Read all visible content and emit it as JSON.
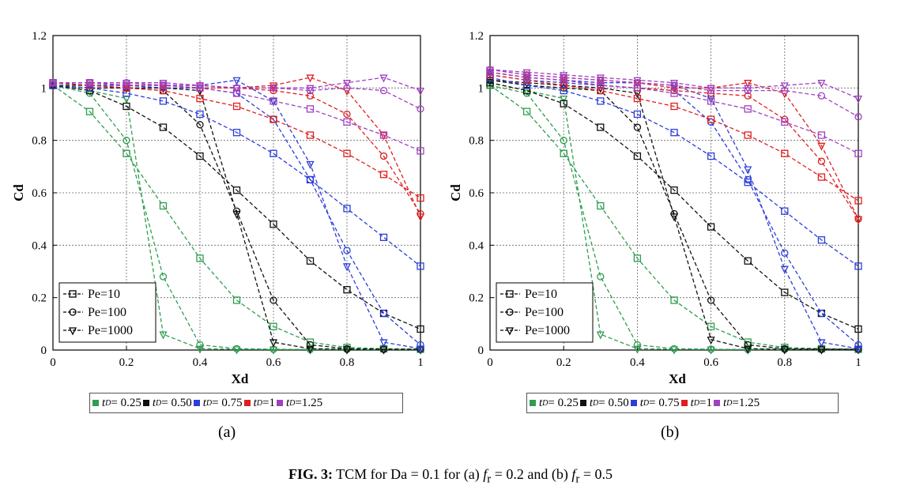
{
  "caption": {
    "label": "FIG. 3:",
    "text": "TCM for Da = 0.1 for (a)",
    "fr_symbol": "f",
    "fr_sub": "r",
    "fr_a": "= 0.2",
    "and_text": "and (b)",
    "fr_b": "= 0.5"
  },
  "panel_labels": [
    "(a)",
    "(b)"
  ],
  "td_legend": [
    {
      "label": "t",
      "sub": "D",
      "value": "= 0.25",
      "color": "#2e9e4e"
    },
    {
      "label": "t",
      "sub": "D",
      "value": "= 0.50",
      "color": "#111111"
    },
    {
      "label": "t",
      "sub": "D",
      "value": "= 0.75",
      "color": "#2c3ed8"
    },
    {
      "label": "t",
      "sub": "D",
      "value": "=1",
      "color": "#e01e1e"
    },
    {
      "label": "t",
      "sub": "D",
      "value": "=1.25",
      "color": "#a040c0"
    }
  ],
  "chart_data": [
    {
      "type": "line",
      "panel": "(a)",
      "xlabel": "Xd",
      "ylabel": "Cd",
      "xlim": [
        0,
        1
      ],
      "ylim": [
        0,
        1.2
      ],
      "xticks": [
        "0",
        "0.2",
        "0.4",
        "0.6",
        "0.8",
        "1"
      ],
      "yticks": [
        "0",
        "0.2",
        "0.4",
        "0.6",
        "0.8",
        "1",
        "1.2"
      ],
      "grid": true,
      "marker_legend": [
        "Pe=10",
        "Pe=100",
        "Pe=1000"
      ],
      "marker_legend_position": "bottom-left",
      "series": [
        {
          "td": 0.25,
          "pe": 10,
          "x": [
            0,
            0.1,
            0.2,
            0.3,
            0.4,
            0.5,
            0.6,
            0.7,
            0.8,
            0.9,
            1
          ],
          "y": [
            1.01,
            0.91,
            0.75,
            0.55,
            0.35,
            0.19,
            0.09,
            0.03,
            0.01,
            0.005,
            0.003
          ]
        },
        {
          "td": 0.25,
          "pe": 100,
          "x": [
            0,
            0.1,
            0.2,
            0.3,
            0.4,
            0.5,
            0.6,
            0.7,
            0.8,
            0.9,
            1
          ],
          "y": [
            1.01,
            0.98,
            0.8,
            0.28,
            0.02,
            0.005,
            0.003,
            0.002,
            0.002,
            0.002,
            0.002
          ]
        },
        {
          "td": 0.25,
          "pe": 1000,
          "x": [
            0,
            0.1,
            0.2,
            0.3,
            0.4,
            0.5,
            0.6,
            0.7,
            0.8,
            0.9,
            1
          ],
          "y": [
            1.01,
            0.99,
            0.96,
            0.06,
            0.005,
            0.003,
            0.002,
            0.002,
            0.002,
            0.002,
            0.002
          ]
        },
        {
          "td": 0.5,
          "pe": 10,
          "x": [
            0,
            0.1,
            0.2,
            0.3,
            0.4,
            0.5,
            0.6,
            0.7,
            0.8,
            0.9,
            1
          ],
          "y": [
            1.01,
            0.99,
            0.93,
            0.85,
            0.74,
            0.61,
            0.48,
            0.34,
            0.23,
            0.14,
            0.08
          ]
        },
        {
          "td": 0.5,
          "pe": 100,
          "x": [
            0,
            0.1,
            0.2,
            0.3,
            0.4,
            0.5,
            0.6,
            0.7,
            0.8,
            0.9,
            1
          ],
          "y": [
            1.01,
            1.0,
            1.0,
            0.99,
            0.86,
            0.53,
            0.19,
            0.02,
            0.005,
            0.003,
            0.003
          ]
        },
        {
          "td": 0.5,
          "pe": 1000,
          "x": [
            0,
            0.1,
            0.2,
            0.3,
            0.4,
            0.5,
            0.6,
            0.7,
            0.8,
            0.9,
            1
          ],
          "y": [
            1.01,
            1.01,
            1.0,
            1.0,
            0.99,
            0.52,
            0.03,
            0.005,
            0.003,
            0.003,
            0.003
          ]
        },
        {
          "td": 0.75,
          "pe": 10,
          "x": [
            0,
            0.1,
            0.2,
            0.3,
            0.4,
            0.5,
            0.6,
            0.7,
            0.8,
            0.9,
            1
          ],
          "y": [
            1.01,
            1.0,
            0.98,
            0.95,
            0.9,
            0.83,
            0.75,
            0.65,
            0.54,
            0.43,
            0.32
          ]
        },
        {
          "td": 0.75,
          "pe": 100,
          "x": [
            0,
            0.1,
            0.2,
            0.3,
            0.4,
            0.5,
            0.6,
            0.7,
            0.8,
            0.9,
            1
          ],
          "y": [
            1.02,
            1.01,
            1.01,
            1.0,
            1.0,
            0.98,
            0.88,
            0.65,
            0.38,
            0.14,
            0.02
          ]
        },
        {
          "td": 0.75,
          "pe": 1000,
          "x": [
            0,
            0.1,
            0.2,
            0.3,
            0.4,
            0.5,
            0.6,
            0.7,
            0.8,
            0.9,
            1
          ],
          "y": [
            1.02,
            1.01,
            1.01,
            1.01,
            1.01,
            1.03,
            0.95,
            0.71,
            0.32,
            0.03,
            0.005
          ]
        },
        {
          "td": 1,
          "pe": 10,
          "x": [
            0,
            0.1,
            0.2,
            0.3,
            0.4,
            0.5,
            0.6,
            0.7,
            0.8,
            0.9,
            1
          ],
          "y": [
            1.02,
            1.01,
            1.0,
            0.99,
            0.96,
            0.93,
            0.88,
            0.82,
            0.75,
            0.67,
            0.58
          ]
        },
        {
          "td": 1,
          "pe": 100,
          "x": [
            0,
            0.1,
            0.2,
            0.3,
            0.4,
            0.5,
            0.6,
            0.7,
            0.8,
            0.9,
            1
          ],
          "y": [
            1.02,
            1.02,
            1.01,
            1.01,
            1.0,
            1.0,
            0.99,
            0.97,
            0.9,
            0.74,
            0.52
          ]
        },
        {
          "td": 1,
          "pe": 1000,
          "x": [
            0,
            0.1,
            0.2,
            0.3,
            0.4,
            0.5,
            0.6,
            0.7,
            0.8,
            0.9,
            1
          ],
          "y": [
            1.02,
            1.02,
            1.01,
            1.01,
            1.01,
            1.0,
            1.01,
            1.04,
            0.99,
            0.82,
            0.51
          ]
        },
        {
          "td": 1.25,
          "pe": 10,
          "x": [
            0,
            0.1,
            0.2,
            0.3,
            0.4,
            0.5,
            0.6,
            0.7,
            0.8,
            0.9,
            1
          ],
          "y": [
            1.02,
            1.02,
            1.01,
            1.01,
            1.0,
            0.98,
            0.95,
            0.92,
            0.87,
            0.82,
            0.76
          ]
        },
        {
          "td": 1.25,
          "pe": 100,
          "x": [
            0,
            0.1,
            0.2,
            0.3,
            0.4,
            0.5,
            0.6,
            0.7,
            0.8,
            0.9,
            1
          ],
          "y": [
            1.02,
            1.02,
            1.02,
            1.01,
            1.01,
            1.0,
            1.0,
            0.99,
            1.0,
            0.99,
            0.92
          ]
        },
        {
          "td": 1.25,
          "pe": 1000,
          "x": [
            0,
            0.1,
            0.2,
            0.3,
            0.4,
            0.5,
            0.6,
            0.7,
            0.8,
            0.9,
            1
          ],
          "y": [
            1.02,
            1.02,
            1.02,
            1.02,
            1.01,
            1.0,
            1.0,
            1.0,
            1.02,
            1.04,
            0.99
          ]
        }
      ]
    },
    {
      "type": "line",
      "panel": "(b)",
      "xlabel": "Xd",
      "ylabel": "Cd",
      "xlim": [
        0,
        1
      ],
      "ylim": [
        0,
        1.2
      ],
      "xticks": [
        "0",
        "0.2",
        "0.4",
        "0.6",
        "0.8",
        "1"
      ],
      "yticks": [
        "0",
        "0.2",
        "0.4",
        "0.6",
        "0.8",
        "1",
        "1.2"
      ],
      "grid": true,
      "marker_legend": [
        "Pe=10",
        "Pe=100",
        "Pe=1000"
      ],
      "marker_legend_position": "bottom-left",
      "series": [
        {
          "td": 0.25,
          "pe": 10,
          "x": [
            0,
            0.1,
            0.2,
            0.3,
            0.4,
            0.5,
            0.6,
            0.7,
            0.8,
            0.9,
            1
          ],
          "y": [
            1.01,
            0.91,
            0.75,
            0.55,
            0.35,
            0.19,
            0.09,
            0.03,
            0.01,
            0.005,
            0.003
          ]
        },
        {
          "td": 0.25,
          "pe": 100,
          "x": [
            0,
            0.1,
            0.2,
            0.3,
            0.4,
            0.5,
            0.6,
            0.7,
            0.8,
            0.9,
            1
          ],
          "y": [
            1.01,
            0.98,
            0.8,
            0.28,
            0.02,
            0.005,
            0.003,
            0.002,
            0.002,
            0.002,
            0.002
          ]
        },
        {
          "td": 0.25,
          "pe": 1000,
          "x": [
            0,
            0.1,
            0.2,
            0.3,
            0.4,
            0.5,
            0.6,
            0.7,
            0.8,
            0.9,
            1
          ],
          "y": [
            1.02,
            0.99,
            0.96,
            0.06,
            0.005,
            0.003,
            0.002,
            0.002,
            0.002,
            0.002,
            0.002
          ]
        },
        {
          "td": 0.5,
          "pe": 10,
          "x": [
            0,
            0.1,
            0.2,
            0.3,
            0.4,
            0.5,
            0.6,
            0.7,
            0.8,
            0.9,
            1
          ],
          "y": [
            1.02,
            0.99,
            0.94,
            0.85,
            0.74,
            0.61,
            0.47,
            0.34,
            0.22,
            0.14,
            0.08
          ]
        },
        {
          "td": 0.5,
          "pe": 100,
          "x": [
            0,
            0.1,
            0.2,
            0.3,
            0.4,
            0.5,
            0.6,
            0.7,
            0.8,
            0.9,
            1
          ],
          "y": [
            1.03,
            1.01,
            1.0,
            0.99,
            0.85,
            0.52,
            0.19,
            0.02,
            0.005,
            0.003,
            0.003
          ]
        },
        {
          "td": 0.5,
          "pe": 1000,
          "x": [
            0,
            0.1,
            0.2,
            0.3,
            0.4,
            0.5,
            0.6,
            0.7,
            0.8,
            0.9,
            1
          ],
          "y": [
            1.03,
            1.02,
            1.01,
            1.0,
            0.98,
            0.51,
            0.04,
            0.005,
            0.003,
            0.003,
            0.003
          ]
        },
        {
          "td": 0.75,
          "pe": 10,
          "x": [
            0,
            0.1,
            0.2,
            0.3,
            0.4,
            0.5,
            0.6,
            0.7,
            0.8,
            0.9,
            1
          ],
          "y": [
            1.04,
            1.01,
            0.99,
            0.95,
            0.9,
            0.83,
            0.74,
            0.64,
            0.53,
            0.42,
            0.32
          ]
        },
        {
          "td": 0.75,
          "pe": 100,
          "x": [
            0,
            0.1,
            0.2,
            0.3,
            0.4,
            0.5,
            0.6,
            0.7,
            0.8,
            0.9,
            1
          ],
          "y": [
            1.05,
            1.03,
            1.02,
            1.01,
            1.0,
            0.99,
            0.87,
            0.65,
            0.37,
            0.14,
            0.02
          ]
        },
        {
          "td": 0.75,
          "pe": 1000,
          "x": [
            0,
            0.1,
            0.2,
            0.3,
            0.4,
            0.5,
            0.6,
            0.7,
            0.8,
            0.9,
            1
          ],
          "y": [
            1.06,
            1.04,
            1.03,
            1.02,
            1.02,
            1.01,
            0.96,
            0.69,
            0.31,
            0.03,
            0.005
          ]
        },
        {
          "td": 1,
          "pe": 10,
          "x": [
            0,
            0.1,
            0.2,
            0.3,
            0.4,
            0.5,
            0.6,
            0.7,
            0.8,
            0.9,
            1
          ],
          "y": [
            1.05,
            1.03,
            1.01,
            0.99,
            0.96,
            0.93,
            0.88,
            0.82,
            0.75,
            0.66,
            0.57
          ]
        },
        {
          "td": 1,
          "pe": 100,
          "x": [
            0,
            0.1,
            0.2,
            0.3,
            0.4,
            0.5,
            0.6,
            0.7,
            0.8,
            0.9,
            1
          ],
          "y": [
            1.06,
            1.04,
            1.03,
            1.01,
            1.0,
            0.99,
            0.98,
            0.97,
            0.88,
            0.72,
            0.5
          ]
        },
        {
          "td": 1,
          "pe": 1000,
          "x": [
            0,
            0.1,
            0.2,
            0.3,
            0.4,
            0.5,
            0.6,
            0.7,
            0.8,
            0.9,
            1
          ],
          "y": [
            1.07,
            1.05,
            1.04,
            1.03,
            1.02,
            1.0,
            1.0,
            1.02,
            0.98,
            0.78,
            0.5
          ]
        },
        {
          "td": 1.25,
          "pe": 10,
          "x": [
            0,
            0.1,
            0.2,
            0.3,
            0.4,
            0.5,
            0.6,
            0.7,
            0.8,
            0.9,
            1
          ],
          "y": [
            1.06,
            1.04,
            1.03,
            1.01,
            1.0,
            0.98,
            0.95,
            0.92,
            0.87,
            0.82,
            0.75
          ]
        },
        {
          "td": 1.25,
          "pe": 100,
          "x": [
            0,
            0.1,
            0.2,
            0.3,
            0.4,
            0.5,
            0.6,
            0.7,
            0.8,
            0.9,
            1
          ],
          "y": [
            1.07,
            1.05,
            1.04,
            1.03,
            1.02,
            1.01,
            0.99,
            0.99,
            0.99,
            0.97,
            0.89
          ]
        },
        {
          "td": 1.25,
          "pe": 1000,
          "x": [
            0,
            0.1,
            0.2,
            0.3,
            0.4,
            0.5,
            0.6,
            0.7,
            0.8,
            0.9,
            1
          ],
          "y": [
            1.07,
            1.06,
            1.05,
            1.04,
            1.03,
            1.02,
            1.0,
            1.0,
            1.01,
            1.02,
            0.96
          ]
        }
      ]
    }
  ]
}
